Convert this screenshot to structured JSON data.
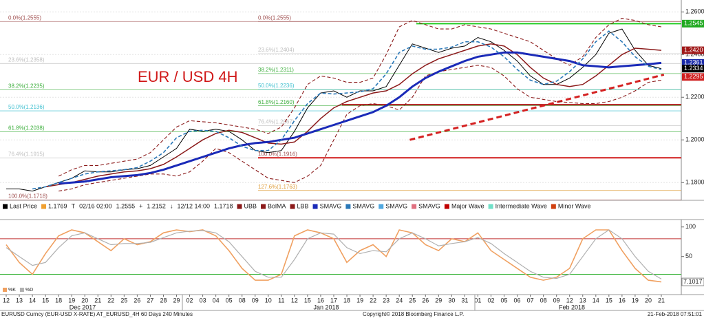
{
  "chart_data": [
    {
      "type": "line",
      "title": "EUR / USD 4H",
      "categories": [
        "12",
        "13",
        "14",
        "15",
        "18",
        "19",
        "20",
        "21",
        "22",
        "25",
        "26",
        "27",
        "28",
        "29",
        "02",
        "03",
        "04",
        "05",
        "08",
        "09",
        "10",
        "11",
        "12",
        "15",
        "16",
        "17",
        "18",
        "19",
        "22",
        "23",
        "24",
        "25",
        "26",
        "29",
        "30",
        "31",
        "01",
        "02",
        "05",
        "06",
        "07",
        "08",
        "09",
        "12",
        "13",
        "14",
        "15",
        "16",
        "19",
        "20",
        "21"
      ],
      "month_labels": [
        "Dec 2017",
        "Jan 2018",
        "Feb 2018"
      ],
      "ylim": [
        1.172,
        1.263
      ],
      "yticks": [
        {
          "value": 1.18,
          "label": "1.1800"
        },
        {
          "value": 1.2,
          "label": "1.2000"
        },
        {
          "value": 1.22,
          "label": "1.2200"
        },
        {
          "value": 1.24,
          "label": "1.2400"
        },
        {
          "value": 1.26,
          "label": "1.2600"
        }
      ],
      "grid": true,
      "series": [
        {
          "name": "Last Price",
          "color": "#000000",
          "values": [
            1.177,
            1.177,
            1.176,
            1.178,
            1.18,
            1.182,
            1.1855,
            1.185,
            1.185,
            1.186,
            1.1865,
            1.188,
            1.192,
            1.196,
            1.205,
            1.204,
            1.205,
            1.204,
            1.2,
            1.195,
            1.194,
            1.195,
            1.204,
            1.215,
            1.222,
            1.223,
            1.22,
            1.223,
            1.223,
            1.225,
            1.235,
            1.245,
            1.243,
            1.241,
            1.243,
            1.244,
            1.248,
            1.246,
            1.242,
            1.237,
            1.23,
            1.226,
            1.226,
            1.229,
            1.234,
            1.24,
            1.25,
            1.252,
            1.242,
            1.235,
            1.2334
          ]
        },
        {
          "name": "UBB",
          "color": "#8b1a1a",
          "style": "dashed",
          "values": [
            null,
            null,
            null,
            null,
            1.183,
            1.186,
            1.188,
            1.188,
            1.189,
            1.19,
            1.191,
            1.194,
            1.2,
            1.206,
            1.209,
            1.2085,
            1.208,
            1.207,
            1.206,
            1.205,
            1.203,
            1.206,
            1.215,
            1.226,
            1.23,
            1.229,
            1.227,
            1.227,
            1.229,
            1.24,
            1.253,
            1.256,
            1.254,
            1.252,
            1.252,
            1.254,
            1.253,
            1.252,
            1.25,
            1.248,
            1.246,
            1.242,
            1.238,
            1.235,
            1.239,
            1.248,
            1.254,
            1.257,
            1.256,
            1.254,
            1.253
          ]
        },
        {
          "name": "BolMA",
          "color": "#8b1a1a",
          "values": [
            null,
            null,
            null,
            1.178,
            1.179,
            1.18,
            1.1815,
            1.183,
            1.184,
            1.185,
            1.1855,
            1.1865,
            1.1885,
            1.192,
            1.196,
            1.2,
            1.203,
            1.2045,
            1.2035,
            1.201,
            1.1985,
            1.198,
            1.199,
            1.204,
            1.21,
            1.215,
            1.218,
            1.22,
            1.222,
            1.223,
            1.226,
            1.231,
            1.235,
            1.238,
            1.24,
            1.242,
            1.244,
            1.245,
            1.244,
            1.24,
            1.234,
            1.229,
            1.226,
            1.225,
            1.226,
            1.23,
            1.235,
            1.24,
            1.243,
            1.2425,
            1.242
          ]
        },
        {
          "name": "LBB",
          "color": "#8b1a1a",
          "style": "dashed",
          "values": [
            null,
            null,
            null,
            null,
            1.176,
            1.177,
            1.179,
            1.18,
            1.181,
            1.182,
            1.183,
            1.184,
            1.184,
            1.183,
            1.185,
            1.19,
            1.196,
            1.194,
            1.19,
            1.186,
            1.182,
            1.181,
            1.18,
            1.183,
            1.188,
            1.2,
            1.212,
            1.216,
            1.217,
            1.216,
            1.214,
            1.22,
            1.23,
            1.232,
            1.233,
            1.234,
            1.235,
            1.234,
            1.23,
            1.224,
            1.22,
            1.219,
            1.218,
            1.2175,
            1.217,
            1.217,
            1.218,
            1.22,
            1.223,
            1.227,
            1.228
          ]
        },
        {
          "name": "SMAVG",
          "color": "#1a2ab8",
          "values": [
            null,
            null,
            null,
            null,
            1.1795,
            1.18,
            1.1805,
            1.1815,
            1.1825,
            1.183,
            1.1835,
            1.1845,
            1.186,
            1.188,
            1.19,
            1.192,
            1.194,
            1.196,
            1.1975,
            1.1985,
            1.199,
            1.2,
            1.201,
            1.203,
            1.205,
            1.207,
            1.209,
            1.211,
            1.213,
            1.216,
            1.22,
            1.225,
            1.229,
            1.232,
            1.2345,
            1.237,
            1.239,
            1.24,
            1.241,
            1.241,
            1.24,
            1.239,
            1.238,
            1.237,
            1.235,
            1.2345,
            1.234,
            1.2345,
            1.235,
            1.2355,
            1.2361
          ]
        },
        {
          "name": "SMAVG",
          "color": "#2a78b8",
          "style": "dashed",
          "values": [
            null,
            null,
            1.177,
            1.178,
            1.18,
            1.182,
            1.184,
            1.185,
            1.1855,
            1.186,
            1.187,
            1.19,
            1.194,
            1.201,
            1.204,
            1.2045,
            1.204,
            1.201,
            1.197,
            1.195,
            1.195,
            1.2,
            1.209,
            1.217,
            1.222,
            1.2215,
            1.222,
            1.2225,
            1.224,
            1.231,
            1.241,
            1.244,
            1.2425,
            1.2425,
            1.2435,
            1.246,
            1.246,
            1.2435,
            1.239,
            1.233,
            1.228,
            1.226,
            1.2275,
            1.232,
            1.238,
            1.246,
            1.251,
            1.246,
            1.239,
            1.2345,
            1.233
          ]
        }
      ],
      "legend_stats": [
        {
          "value": 1.1769,
          "color": "#f0a030"
        },
        {
          "symbol": "T",
          "time": "02/16 02:00",
          "value": 1.2555
        },
        {
          "symbol": "+",
          "value": 1.2152
        },
        {
          "symbol": "↓",
          "time": "12/12 14:00",
          "value": 1.1718
        }
      ],
      "legend_extra": [
        {
          "label": "SMAVG",
          "color": "#50a8e0"
        },
        {
          "label": "SMAVG",
          "color": "#e07080"
        },
        {
          "label": "Major Wave",
          "color": "#c00000"
        },
        {
          "label": "Intermediate Wave",
          "color": "#70e0c8"
        },
        {
          "label": "Minor Wave",
          "color": "#d04010"
        }
      ],
      "fib_left": [
        {
          "label": "0.0%(1.2555)",
          "value": 1.2555,
          "color": "#a05050"
        },
        {
          "label": "23.6%(1.2358)",
          "value": 1.2358,
          "color": "#c0c0c0"
        },
        {
          "label": "38.2%(1.2235)",
          "value": 1.2235,
          "color": "#40b040"
        },
        {
          "label": "50.0%(1.2136)",
          "value": 1.2136,
          "color": "#40c0d0"
        },
        {
          "label": "61.8%(1.2038)",
          "value": 1.2038,
          "color": "#40b040"
        },
        {
          "label": "76.4%(1.1915)",
          "value": 1.1915,
          "color": "#c0c0c0"
        },
        {
          "label": "100.0%(1.1718)",
          "value": 1.1718,
          "color": "#a05050"
        }
      ],
      "fib_right": [
        {
          "label": "0.0%(1.2555)",
          "value": 1.2555,
          "color": "#a05050"
        },
        {
          "label": "23.6%(1.2404)",
          "value": 1.2404,
          "color": "#c0c0c0"
        },
        {
          "label": "38.2%(1.2311)",
          "value": 1.2311,
          "color": "#40b040"
        },
        {
          "label": "50.0%(1.2236)",
          "value": 1.2236,
          "color": "#40c0d0"
        },
        {
          "label": "61.8%(1.2160)",
          "value": 1.216,
          "color": "#40b040"
        },
        {
          "label": "76.4%(1.2067)",
          "value": 1.2067,
          "color": "#c0c0c0"
        },
        {
          "label": "100.0%(1.1916)",
          "value": 1.1916,
          "color": "#a05050"
        },
        {
          "label": "127.6%(1.1763)",
          "value": 1.1763,
          "color": "#e0a040"
        }
      ],
      "levels": [
        {
          "value": 1.2545,
          "color": "#22cc22"
        },
        {
          "value": 1.2165,
          "color": "#b01818"
        },
        {
          "value": 1.1916,
          "color": "#d01818"
        }
      ],
      "trend_line": {
        "values": [
          1.2,
          1.2306
        ],
        "color": "#d42020"
      },
      "price_tags": [
        {
          "value": 1.2545,
          "label": "1.2545",
          "color": "#22aa22"
        },
        {
          "value": 1.242,
          "label": "1.2420",
          "color": "#a01818"
        },
        {
          "value": 1.2361,
          "label": "1.2361",
          "color": "#1a2aa8"
        },
        {
          "value": 1.2334,
          "label": "1.2334",
          "color": "#000000"
        },
        {
          "value": 1.2295,
          "label": "1.2295",
          "color": "#d02020"
        }
      ]
    },
    {
      "type": "line",
      "ylim": [
        -5,
        109
      ],
      "yticks": [
        50,
        100
      ],
      "levels": [
        {
          "value": 80,
          "color": "#c03030"
        },
        {
          "value": 20,
          "color": "#30b030"
        }
      ],
      "series": [
        {
          "name": "%K",
          "color": "#f0a060",
          "values": [
            70,
            40,
            20,
            55,
            85,
            95,
            90,
            75,
            60,
            80,
            70,
            75,
            90,
            95,
            92,
            95,
            85,
            60,
            30,
            10,
            10,
            20,
            85,
            95,
            90,
            80,
            40,
            60,
            70,
            50,
            95,
            90,
            70,
            60,
            80,
            75,
            90,
            60,
            45,
            30,
            15,
            10,
            15,
            30,
            80,
            95,
            95,
            60,
            30,
            10,
            7.1017
          ]
        },
        {
          "name": "%D",
          "color": "#b0b0b0",
          "values": [
            65,
            50,
            35,
            40,
            65,
            85,
            90,
            80,
            70,
            72,
            72,
            74,
            82,
            90,
            93,
            94,
            90,
            75,
            50,
            25,
            15,
            15,
            45,
            80,
            90,
            88,
            65,
            55,
            60,
            58,
            80,
            90,
            80,
            68,
            72,
            75,
            82,
            72,
            55,
            40,
            25,
            15,
            13,
            20,
            50,
            80,
            95,
            80,
            50,
            25,
            12
          ]
        }
      ],
      "tag": {
        "value": 7.1017,
        "label": "7.1017"
      }
    }
  ],
  "footer": {
    "source": "EURUSD Curncy (EUR-USD X-RATE) AT_EURUSD_4H 60 Days 240 Minutes",
    "copyright": "Copyright© 2018 Bloomberg Finance L.P.",
    "timestamp": "21-Feb-2018 07:51:01"
  }
}
